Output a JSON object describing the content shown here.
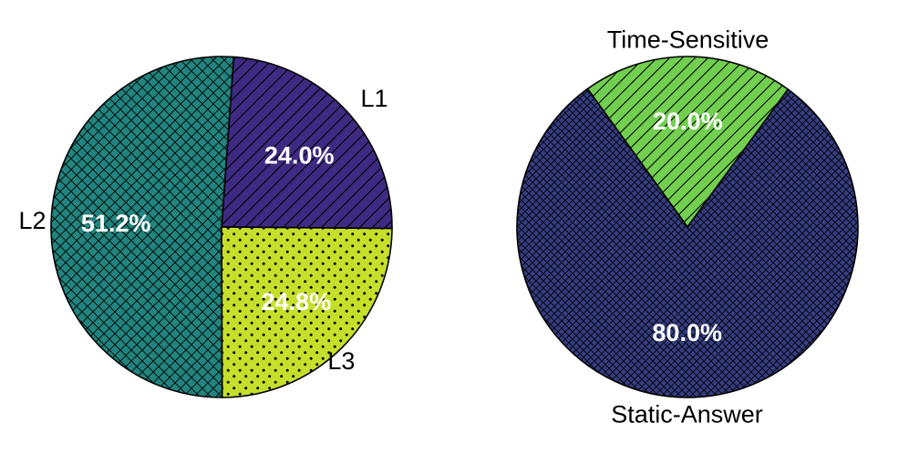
{
  "chart_data": [
    {
      "type": "pie",
      "title": "",
      "slices": [
        {
          "label": "L1",
          "value": 24.0,
          "pct_label": "24.0%",
          "color": "#3e2a82",
          "hatch": "diagonal"
        },
        {
          "label": "L2",
          "value": 51.2,
          "pct_label": "51.2%",
          "color": "#21847f",
          "hatch": "crosshatch"
        },
        {
          "label": "L3",
          "value": 24.8,
          "pct_label": "24.8%",
          "color": "#c6df2a",
          "hatch": "dots"
        }
      ]
    },
    {
      "type": "pie",
      "title": "",
      "slices": [
        {
          "label": "Time-Sensitive",
          "value": 20.0,
          "pct_label": "20.0%",
          "color": "#72cf4f",
          "hatch": "diagonal"
        },
        {
          "label": "Static-Answer",
          "value": 80.0,
          "pct_label": "80.0%",
          "color": "#353d82",
          "hatch": "crosshatch"
        }
      ]
    }
  ]
}
